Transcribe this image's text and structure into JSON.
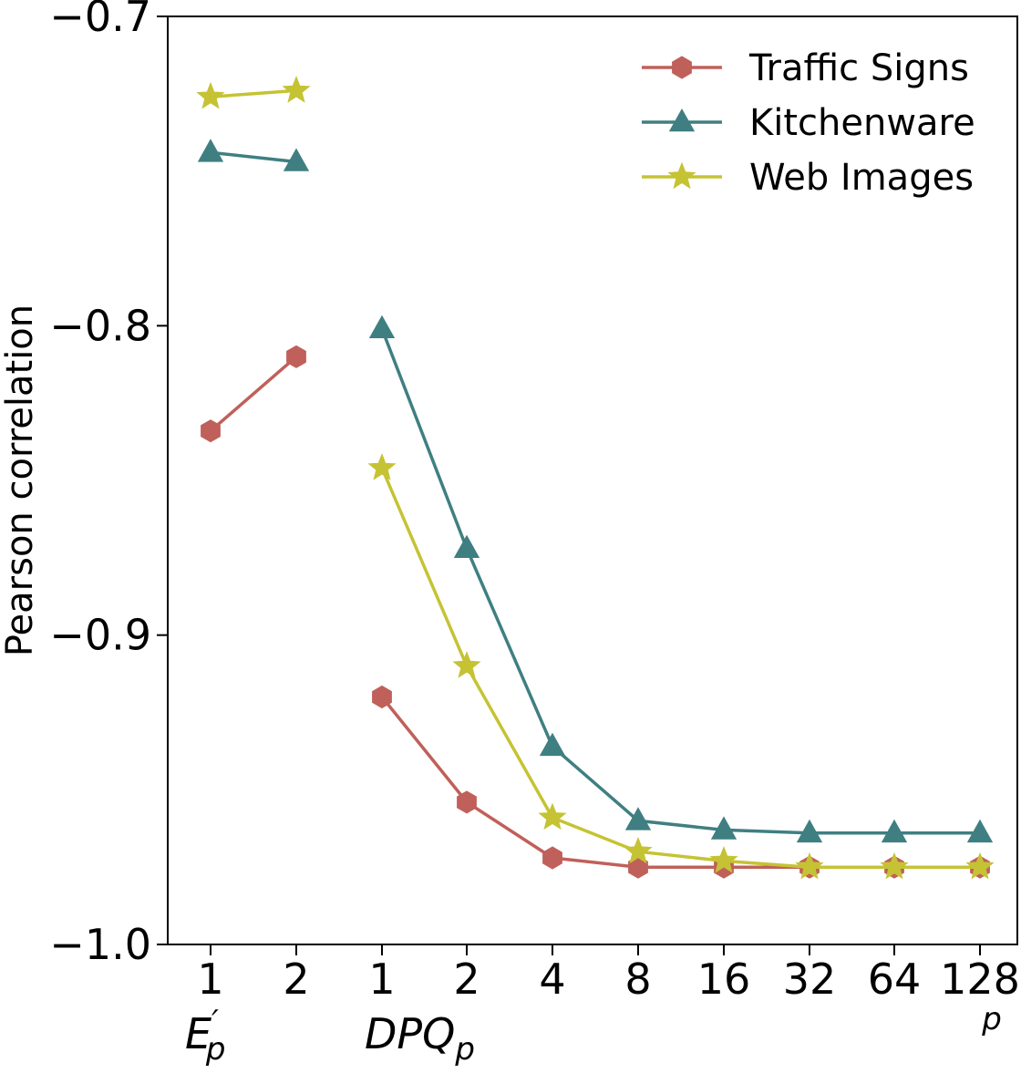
{
  "chart_data": {
    "type": "line",
    "title": "",
    "xlabel": "p",
    "ylabel": "Pearson correlation",
    "ylim": [
      -1.0,
      -0.7
    ],
    "yticks": [
      -0.7,
      -0.8,
      -0.9,
      -1.0
    ],
    "ytick_labels": [
      "−0.7",
      "−0.8",
      "−0.9",
      "−1.0"
    ],
    "xtick_labels": [
      "1",
      "2",
      "1",
      "2",
      "4",
      "8",
      "16",
      "32",
      "64",
      "128"
    ],
    "groups": [
      {
        "label_main": "E",
        "label_sup": "′",
        "label_sub": "p",
        "start": 0,
        "end": 1
      },
      {
        "label_main": "DPQ",
        "label_sup": "",
        "label_sub": "p",
        "start": 2,
        "end": 9
      }
    ],
    "legend_position": "top-right",
    "series": [
      {
        "name": "Traffic Signs",
        "color": "#c0605a",
        "marker": "hexagon",
        "segments": [
          {
            "x": [
              0,
              1
            ],
            "values": [
              -0.834,
              -0.81
            ]
          },
          {
            "x": [
              2,
              3,
              4,
              5,
              6,
              7,
              8,
              9
            ],
            "values": [
              -0.92,
              -0.954,
              -0.972,
              -0.975,
              -0.975,
              -0.975,
              -0.975,
              -0.975
            ]
          }
        ]
      },
      {
        "name": "Kitchenware",
        "color": "#3f7f82",
        "marker": "triangle",
        "segments": [
          {
            "x": [
              0,
              1
            ],
            "values": [
              -0.744,
              -0.747
            ]
          },
          {
            "x": [
              2,
              3,
              4,
              5,
              6,
              7,
              8,
              9
            ],
            "values": [
              -0.801,
              -0.872,
              -0.936,
              -0.96,
              -0.963,
              -0.964,
              -0.964,
              -0.964
            ]
          }
        ]
      },
      {
        "name": "Web Images",
        "color": "#c5c334",
        "marker": "star",
        "segments": [
          {
            "x": [
              0,
              1
            ],
            "values": [
              -0.726,
              -0.724
            ]
          },
          {
            "x": [
              2,
              3,
              4,
              5,
              6,
              7,
              8,
              9
            ],
            "values": [
              -0.846,
              -0.91,
              -0.959,
              -0.97,
              -0.973,
              -0.975,
              -0.975,
              -0.975
            ]
          }
        ]
      }
    ]
  }
}
